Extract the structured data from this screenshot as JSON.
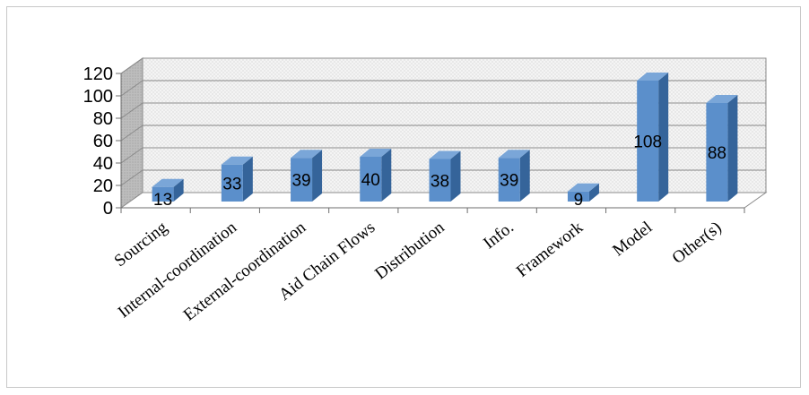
{
  "chart_data": {
    "type": "bar",
    "style": "3d-column",
    "categories": [
      "Sourcing",
      "Internal-coordination",
      "External-coordination",
      "Aid Chain Flows",
      "Distribution",
      "Info.",
      "Framework",
      "Model",
      "Other(s)"
    ],
    "values": [
      13,
      33,
      39,
      40,
      38,
      39,
      9,
      108,
      88
    ],
    "data_labels": [
      "13",
      "33",
      "39",
      "40",
      "38",
      "39",
      "9",
      "108",
      "88"
    ],
    "ylim": [
      0,
      120
    ],
    "yticks": [
      0,
      20,
      40,
      60,
      80,
      100,
      120
    ],
    "grid": true,
    "legend": "none",
    "colors": {
      "front": "#5b8fcb",
      "side": "#35649a",
      "top": "#7aa6d8",
      "wall": "#f2f2f2",
      "grid": "#8a8a8a"
    }
  }
}
